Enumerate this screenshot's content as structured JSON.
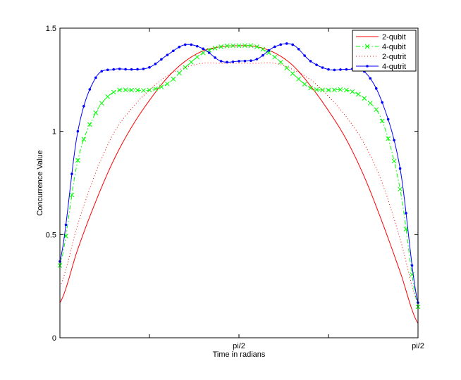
{
  "chart_data": {
    "type": "line",
    "title": "",
    "xlabel": "Time in radians",
    "ylabel": "Concurrence Value",
    "xlim": [
      0,
      1
    ],
    "ylim": [
      0,
      1.5
    ],
    "grid": false,
    "legend_position": "top-right",
    "x_ticks": [
      {
        "value": 0,
        "label": ""
      },
      {
        "value": 0.25,
        "label": ""
      },
      {
        "value": 0.5,
        "label": "pi/2"
      },
      {
        "value": 0.75,
        "label": ""
      },
      {
        "value": 1,
        "label": "pi/2"
      }
    ],
    "y_ticks": [
      {
        "value": 0,
        "label": "0"
      },
      {
        "value": 0.5,
        "label": "0.5"
      },
      {
        "value": 1,
        "label": "1"
      },
      {
        "value": 1.5,
        "label": "1.5"
      }
    ],
    "x": [
      0,
      0.05,
      0.1,
      0.15,
      0.2,
      0.25,
      0.3,
      0.35,
      0.4,
      0.45,
      0.5,
      0.55,
      0.6,
      0.65,
      0.7,
      0.75,
      0.8,
      0.85,
      0.9,
      0.95,
      1
    ],
    "series": [
      {
        "name": "2-qubit",
        "color": "#ff0000",
        "style": "solid",
        "marker": "none",
        "values": [
          0.17,
          0.43,
          0.66,
          0.86,
          1.02,
          1.15,
          1.26,
          1.34,
          1.39,
          1.41,
          1.415,
          1.41,
          1.38,
          1.32,
          1.22,
          1.1,
          0.96,
          0.78,
          0.56,
          0.32,
          0.07
        ]
      },
      {
        "name": "4-qubit",
        "color": "#00ff00",
        "style": "dashdot",
        "marker": "x",
        "values": [
          0.35,
          0.86,
          1.09,
          1.19,
          1.2,
          1.2,
          1.23,
          1.31,
          1.38,
          1.41,
          1.415,
          1.41,
          1.36,
          1.28,
          1.21,
          1.2,
          1.2,
          1.16,
          1.05,
          0.72,
          0.15
        ]
      },
      {
        "name": "2-qutrit",
        "color": "#ff0000",
        "style": "dotted",
        "marker": "none",
        "values": [
          0.25,
          0.55,
          0.8,
          0.99,
          1.11,
          1.2,
          1.27,
          1.31,
          1.33,
          1.33,
          1.33,
          1.33,
          1.33,
          1.3,
          1.25,
          1.17,
          1.07,
          0.94,
          0.75,
          0.48,
          0.17
        ]
      },
      {
        "name": "4-qutrit",
        "color": "#0000ff",
        "style": "solid",
        "marker": "dot",
        "values": [
          0.37,
          1.0,
          1.26,
          1.3,
          1.3,
          1.31,
          1.37,
          1.42,
          1.4,
          1.34,
          1.34,
          1.35,
          1.41,
          1.42,
          1.34,
          1.3,
          1.3,
          1.29,
          1.14,
          0.82,
          0.17
        ]
      }
    ]
  }
}
